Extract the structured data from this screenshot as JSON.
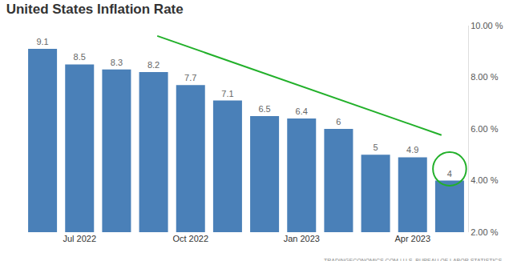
{
  "chart_data": {
    "type": "bar",
    "title": "United States Inflation Rate",
    "categories": [
      null,
      "Jul 2022",
      null,
      null,
      "Oct 2022",
      null,
      null,
      "Jan 2023",
      null,
      null,
      "Apr 2023",
      null
    ],
    "values": [
      9.1,
      8.5,
      8.3,
      8.2,
      7.7,
      7.1,
      6.5,
      6.4,
      6,
      5,
      4.9,
      4
    ],
    "color": "#4a80b8",
    "ylim": [
      2,
      10
    ],
    "yticks": [
      {
        "value": 2,
        "label": "2.00 %"
      },
      {
        "value": 4,
        "label": "4.00 %"
      },
      {
        "value": 6,
        "label": "6.00 %"
      },
      {
        "value": 8,
        "label": "8.00 %"
      },
      {
        "value": 10,
        "label": "10.00 %"
      }
    ],
    "grid": false,
    "data_labels": true,
    "annotations": [
      "TRADINGECONOMICS.COM | U.S. BUREAU OF LABOR STATISTICS"
    ]
  }
}
